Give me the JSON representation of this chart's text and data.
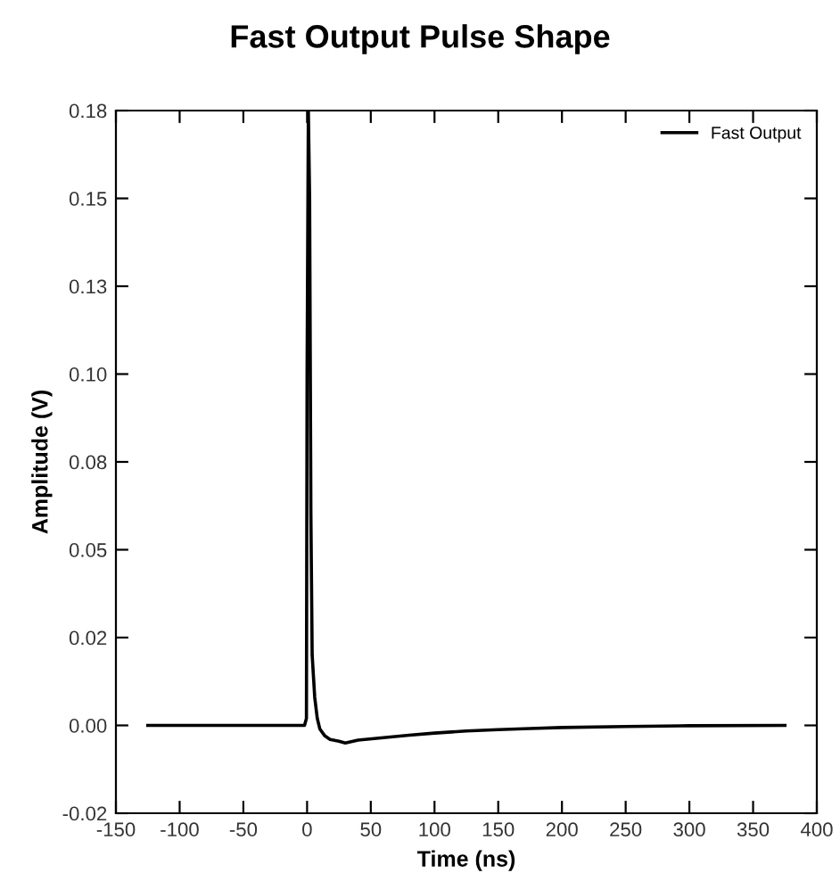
{
  "chart_data": {
    "type": "line",
    "title": "Fast Output Pulse Shape",
    "xlabel": "Time (ns)",
    "ylabel": "Amplitude (V)",
    "xlim": [
      -150,
      400
    ],
    "xticks": [
      -150,
      -100,
      -50,
      0,
      50,
      100,
      150,
      200,
      250,
      300,
      350,
      400
    ],
    "ylim": [
      -0.025,
      0.175
    ],
    "yticks": [
      {
        "value": -0.025,
        "label": "-0.02"
      },
      {
        "value": 0,
        "label": "0.00"
      },
      {
        "value": 0.025,
        "label": "0.02"
      },
      {
        "value": 0.05,
        "label": "0.05"
      },
      {
        "value": 0.075,
        "label": "0.08"
      },
      {
        "value": 0.1,
        "label": "0.10"
      },
      {
        "value": 0.125,
        "label": "0.13"
      },
      {
        "value": 0.15,
        "label": "0.15"
      },
      {
        "value": 0.175,
        "label": "0.18"
      }
    ],
    "grid": false,
    "legend": "top right",
    "marker": "none",
    "line_style": "solid",
    "series": [
      {
        "name": "Fast Output",
        "color": "#000000",
        "x": [
          -125,
          -2,
          -0.5,
          0,
          1,
          2,
          3,
          4,
          6,
          8,
          10,
          14,
          18,
          25,
          30,
          40,
          60,
          80,
          100,
          125,
          150,
          175,
          200,
          250,
          300,
          375
        ],
        "values": [
          0,
          0,
          0.002,
          0.1,
          0.175,
          0.15,
          0.06,
          0.02,
          0.008,
          0.002,
          -0.001,
          -0.003,
          -0.004,
          -0.0045,
          -0.005,
          -0.0042,
          -0.0035,
          -0.0028,
          -0.0022,
          -0.0016,
          -0.0012,
          -0.0009,
          -0.0006,
          -0.0003,
          -0.0001,
          0
        ]
      }
    ]
  }
}
